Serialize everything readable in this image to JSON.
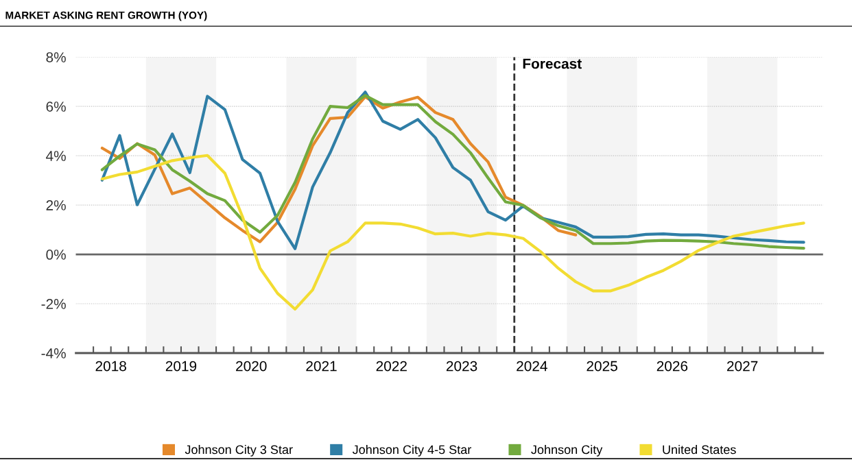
{
  "chart_data": {
    "type": "line",
    "title": "MARKET ASKING RENT GROWTH (YOY)",
    "x": [
      2018.375,
      2018.625,
      2018.875,
      2019.125,
      2019.375,
      2019.625,
      2019.875,
      2020.125,
      2020.375,
      2020.625,
      2020.875,
      2021.125,
      2021.375,
      2021.625,
      2021.875,
      2022.125,
      2022.375,
      2022.625,
      2022.875,
      2023.125,
      2023.375,
      2023.625,
      2023.875,
      2024.125,
      2024.375,
      2024.625,
      2024.875,
      2025.125,
      2025.375,
      2025.625,
      2025.875,
      2026.125,
      2026.375,
      2026.625,
      2026.875,
      2027.125,
      2027.375,
      2027.625,
      2027.875,
      2028.125,
      2028.375
    ],
    "series": [
      {
        "name": "Johnson City 3 Star",
        "color": "#e5892b",
        "values": [
          4.31,
          3.89,
          4.49,
          4.03,
          2.46,
          2.69,
          2.09,
          1.48,
          0.97,
          0.51,
          1.3,
          2.64,
          4.4,
          5.51,
          5.56,
          6.39,
          5.93,
          6.18,
          6.37,
          5.75,
          5.47,
          4.49,
          3.75,
          2.32,
          1.99,
          1.53,
          0.97,
          0.79,
          null,
          null,
          null,
          null,
          null,
          null,
          null,
          null,
          null,
          null,
          null,
          null,
          null
        ]
      },
      {
        "name": "Johnson City 4-5 Star",
        "color": "#2f7ea6",
        "values": [
          3.01,
          4.82,
          2.01,
          3.45,
          4.88,
          3.31,
          6.41,
          5.87,
          3.85,
          3.29,
          1.34,
          0.23,
          2.73,
          4.12,
          5.75,
          6.58,
          5.4,
          5.07,
          5.47,
          4.73,
          3.52,
          3.01,
          1.73,
          1.39,
          1.96,
          1.48,
          1.3,
          1.11,
          0.7,
          0.7,
          0.72,
          0.81,
          0.83,
          0.79,
          0.79,
          0.74,
          0.67,
          0.6,
          0.56,
          0.51,
          0.49
        ]
      },
      {
        "name": "Johnson City",
        "color": "#72aa3e",
        "values": [
          3.43,
          3.99,
          4.48,
          4.24,
          3.43,
          2.97,
          2.46,
          2.18,
          1.39,
          0.9,
          1.58,
          2.92,
          4.68,
          6.0,
          5.95,
          6.44,
          6.07,
          6.07,
          6.07,
          5.38,
          4.87,
          4.12,
          3.1,
          2.13,
          1.99,
          1.48,
          1.16,
          0.97,
          0.44,
          0.44,
          0.46,
          0.54,
          0.57,
          0.56,
          0.54,
          0.51,
          0.44,
          0.39,
          0.32,
          0.28,
          0.25
        ]
      },
      {
        "name": "United States",
        "color": "#f2dc32",
        "values": [
          3.06,
          3.24,
          3.34,
          3.57,
          3.8,
          3.92,
          4.01,
          3.29,
          1.53,
          -0.56,
          -1.58,
          -2.22,
          -1.44,
          0.14,
          0.51,
          1.27,
          1.27,
          1.23,
          1.07,
          0.83,
          0.86,
          0.74,
          0.86,
          0.79,
          0.65,
          0.11,
          -0.56,
          -1.11,
          -1.48,
          -1.48,
          -1.25,
          -0.93,
          -0.65,
          -0.28,
          0.16,
          0.46,
          0.74,
          0.88,
          1.02,
          1.16,
          1.27
        ]
      }
    ],
    "xlim": [
      2018,
      2028.65
    ],
    "xticks": [
      {
        "value": 2018.25,
        "label": null
      },
      {
        "value": 2018.5,
        "label": "2018"
      },
      {
        "value": 2018.75,
        "label": null
      },
      {
        "value": 2019,
        "label": null
      },
      {
        "value": 2019.25,
        "label": null
      },
      {
        "value": 2019.5,
        "label": "2019"
      },
      {
        "value": 2019.75,
        "label": null
      },
      {
        "value": 2020,
        "label": null
      },
      {
        "value": 2020.25,
        "label": null
      },
      {
        "value": 2020.5,
        "label": "2020"
      },
      {
        "value": 2020.75,
        "label": null
      },
      {
        "value": 2021,
        "label": null
      },
      {
        "value": 2021.25,
        "label": null
      },
      {
        "value": 2021.5,
        "label": "2021"
      },
      {
        "value": 2021.75,
        "label": null
      },
      {
        "value": 2022,
        "label": null
      },
      {
        "value": 2022.25,
        "label": null
      },
      {
        "value": 2022.5,
        "label": "2022"
      },
      {
        "value": 2022.75,
        "label": null
      },
      {
        "value": 2023,
        "label": null
      },
      {
        "value": 2023.25,
        "label": null
      },
      {
        "value": 2023.5,
        "label": "2023"
      },
      {
        "value": 2023.75,
        "label": null
      },
      {
        "value": 2024,
        "label": null
      },
      {
        "value": 2024.25,
        "label": null
      },
      {
        "value": 2024.5,
        "label": "2024"
      },
      {
        "value": 2024.75,
        "label": null
      },
      {
        "value": 2025,
        "label": null
      },
      {
        "value": 2025.25,
        "label": null
      },
      {
        "value": 2025.5,
        "label": "2025"
      },
      {
        "value": 2025.75,
        "label": null
      },
      {
        "value": 2026,
        "label": null
      },
      {
        "value": 2026.25,
        "label": null
      },
      {
        "value": 2026.5,
        "label": "2026"
      },
      {
        "value": 2026.75,
        "label": null
      },
      {
        "value": 2027,
        "label": null
      },
      {
        "value": 2027.25,
        "label": null
      },
      {
        "value": 2027.5,
        "label": "2027"
      },
      {
        "value": 2027.75,
        "label": null
      },
      {
        "value": 2028,
        "label": null
      },
      {
        "value": 2028.25,
        "label": null
      },
      {
        "value": 2028.5,
        "label": null
      }
    ],
    "ylim": [
      -4,
      8
    ],
    "yticks": [
      {
        "value": -4,
        "label": "-4%"
      },
      {
        "value": -2,
        "label": "-2%"
      },
      {
        "value": 0,
        "label": "0%"
      },
      {
        "value": 2,
        "label": "2%"
      },
      {
        "value": 4,
        "label": "4%"
      },
      {
        "value": 6,
        "label": "6%"
      },
      {
        "value": 8,
        "label": "8%"
      }
    ],
    "grid": "y",
    "legend": "bottom",
    "line_style": "solid",
    "marker": "none",
    "bands": [
      {
        "axis": "x",
        "from": 2019,
        "to": 2020,
        "color": "#f4f4f4"
      },
      {
        "axis": "x",
        "from": 2021,
        "to": 2022,
        "color": "#f4f4f4"
      },
      {
        "axis": "x",
        "from": 2023,
        "to": 2024,
        "color": "#f4f4f4"
      },
      {
        "axis": "x",
        "from": 2025,
        "to": 2026,
        "color": "#f4f4f4"
      },
      {
        "axis": "x",
        "from": 2027,
        "to": 2028,
        "color": "#f4f4f4"
      }
    ],
    "ref_lines": [
      {
        "axis": "y",
        "value": 0,
        "color": "#666666",
        "line_style": "solid"
      },
      {
        "axis": "x",
        "value": 2024.25,
        "label": "Forecast",
        "color": "#333333",
        "line_style": "dashed"
      }
    ]
  }
}
